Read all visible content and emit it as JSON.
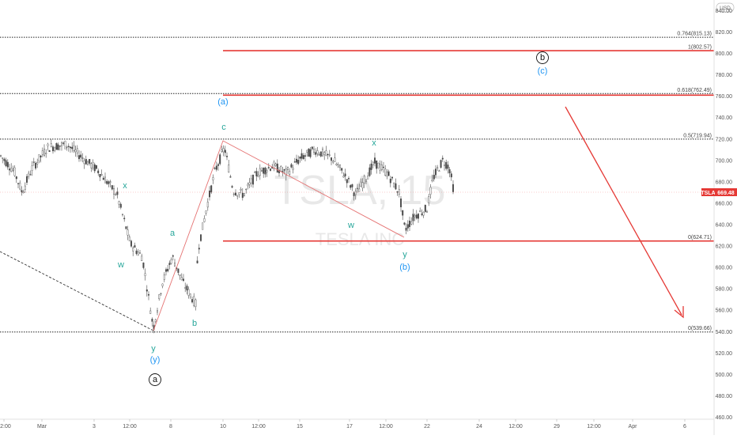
{
  "chart_data": {
    "type": "candlestick",
    "symbol": "TSLA",
    "watermark": {
      "ticker": "TSLA, 15",
      "name": "TESLA INC"
    },
    "currency": "USD",
    "last_price": "669.48",
    "y_range": [
      455,
      845
    ],
    "y_ticks": [
      460,
      480,
      500,
      520,
      540,
      560,
      580,
      600,
      620,
      640,
      660,
      680,
      700,
      720,
      740,
      760,
      780,
      800,
      820,
      840
    ],
    "x_ticks": [
      "12:00",
      "Mar",
      "3",
      "12:00",
      "8",
      "10",
      "12:00",
      "15",
      "17",
      "12:00",
      "22",
      "24",
      "12:00",
      "29",
      "12:00",
      "Apr",
      "6"
    ],
    "fib_levels": [
      {
        "label": "0.764(815.13)",
        "value": 815.13
      },
      {
        "label": "1(802.57)",
        "value": 802.57
      },
      {
        "label": "0.618(762.49)",
        "value": 762.49
      },
      {
        "label": "0.5(719.94)",
        "value": 719.94
      },
      {
        "label": "0(624.71)",
        "value": 624.71
      },
      {
        "label": "0(539.66)",
        "value": 539.66
      }
    ],
    "wave_labels": [
      "x",
      "w",
      "a",
      "b",
      "y",
      "(y)",
      "a",
      "c",
      "(a)",
      "w",
      "x",
      "y",
      "(b)",
      "b",
      "(c)"
    ],
    "colors": {
      "red": "#e53935",
      "teal": "#26a69a",
      "blue": "#2196f3",
      "candle": "#4a4a4a"
    }
  }
}
